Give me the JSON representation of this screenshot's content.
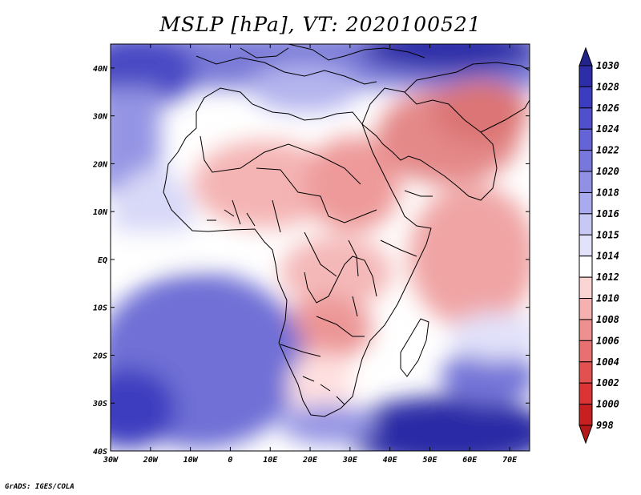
{
  "title": "MSLP [hPa], VT: 2020100521",
  "credit": "GrADS: IGES/COLA",
  "map": {
    "region": "Africa and Arabian Peninsula",
    "lon_range": [
      -30,
      75
    ],
    "lat_range": [
      -40,
      45
    ],
    "lon_ticks": [
      "30W",
      "20W",
      "10W",
      "0",
      "10E",
      "20E",
      "30E",
      "40E",
      "50E",
      "60E",
      "70E"
    ],
    "lat_ticks": [
      "40N",
      "30N",
      "20N",
      "10N",
      "EQ",
      "10S",
      "20S",
      "30S",
      "40S"
    ]
  },
  "colorbar": {
    "levels": [
      "1030",
      "1028",
      "1026",
      "1024",
      "1022",
      "1020",
      "1018",
      "1016",
      "1015",
      "1014",
      "1012",
      "1010",
      "1008",
      "1006",
      "1004",
      "1002",
      "1000",
      "998"
    ],
    "colors": [
      "#23238c",
      "#2d2da8",
      "#3c3cc0",
      "#5050cc",
      "#6464d6",
      "#7878dc",
      "#9090e4",
      "#aaaaee",
      "#c8c8f4",
      "#e2e2fa",
      "#ffffff",
      "#fbd4d4",
      "#f5b0b0",
      "#ee9090",
      "#e87070",
      "#e25050",
      "#dc3434",
      "#c82020",
      "#b41818"
    ]
  }
}
